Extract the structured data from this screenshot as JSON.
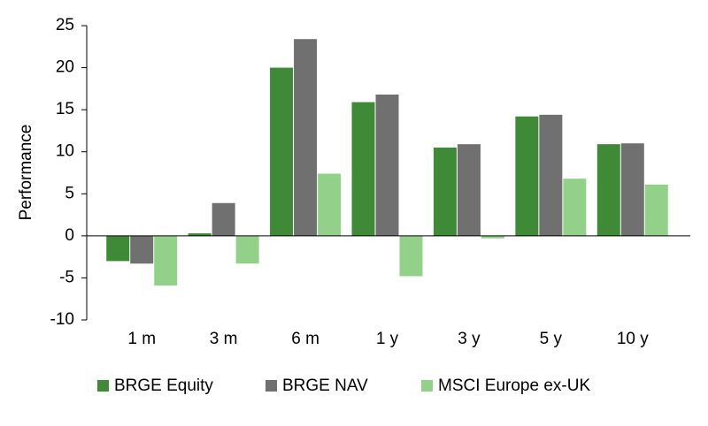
{
  "chart_data": {
    "type": "bar",
    "y_label": "Performance",
    "categories": [
      "1 m",
      "3 m",
      "6 m",
      "1 y",
      "3 y",
      "5 y",
      "10 y"
    ],
    "series": [
      {
        "name": "BRGE Equity",
        "color": "#3f8a37",
        "values": [
          -3.0,
          0.3,
          20.0,
          15.9,
          10.5,
          14.2,
          10.9
        ]
      },
      {
        "name": "BRGE NAV",
        "color": "#707070",
        "values": [
          -3.3,
          3.9,
          23.4,
          16.8,
          10.9,
          14.4,
          11.0
        ]
      },
      {
        "name": "MSCI Europe ex-UK",
        "color": "#93d18b",
        "values": [
          -5.9,
          -3.3,
          7.4,
          -4.8,
          -0.3,
          6.8,
          6.1
        ]
      }
    ],
    "ylim": [
      -10,
      25
    ],
    "yticks": [
      -10,
      -5,
      0,
      5,
      10,
      15,
      20,
      25
    ],
    "grid": false,
    "legend": "bottom"
  }
}
